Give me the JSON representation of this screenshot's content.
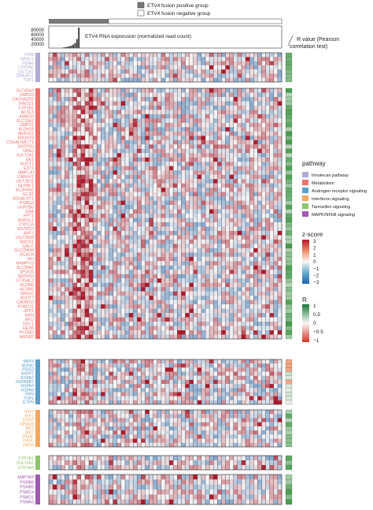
{
  "chart_data": {
    "type": "heatmap",
    "title": "",
    "group_legend": [
      {
        "label": "ETV4 fusion positive group",
        "color": "#777777"
      },
      {
        "label": "ETV4 fusion negative group",
        "color": "#ffffff"
      }
    ],
    "group_split": {
      "positive_samples": 9,
      "total_samples": 58
    },
    "expression_bar": {
      "label": "ETV4 RNA expression (normalized read count)",
      "ticks": [
        "80000",
        "60000",
        "40000",
        "20000"
      ],
      "values": [
        2500,
        4000,
        5500,
        7500,
        10000,
        14000,
        20000,
        36000,
        82000
      ]
    },
    "r_value_title": [
      "R value (Pearson",
      "correlation test)"
    ],
    "pathway_legend": {
      "title": "pathway",
      "items": [
        {
          "label": "Irinotecan pathway",
          "color": "#b1a9d6"
        },
        {
          "label": "Metabolism",
          "color": "#f0706d"
        },
        {
          "label": "Androgen receptor signaling",
          "color": "#5a9ec9"
        },
        {
          "label": "Interferon signaling",
          "color": "#f4a85e"
        },
        {
          "label": "Tamoxifen signaling",
          "color": "#8cc56a"
        },
        {
          "label": "MAPK/NFkB signaling",
          "color": "#a05ab0"
        }
      ]
    },
    "zscore_legend": {
      "title": "z-score",
      "ticks": [
        "3",
        "2",
        "1",
        "0",
        "−1",
        "−2",
        "−3"
      ],
      "range": [
        -3,
        3
      ]
    },
    "r_legend": {
      "title": "R",
      "ticks": [
        "1",
        "0.5",
        "0",
        "−0.5",
        "−1"
      ],
      "range": [
        -1,
        1
      ]
    },
    "gene_groups": [
      {
        "pathway": "Irinotecan pathway",
        "genes": [
          "PPIB",
          "NR3C1",
          "PDIA6",
          "CYP2A6",
          "UGT1A1",
          "DNAJB11",
          "TOP1"
        ]
      },
      {
        "pathway": "Metabolism",
        "genes": [
          "SLC45A3",
          "SMPD3",
          "CACNA2D2",
          "TRESZ1",
          "CYP1B1",
          "ACSL3",
          "AMACR",
          "SLC15A1",
          "SMPD1",
          "ALDH18",
          "AKR1D1",
          "B3GNT9",
          "CSGALNACT1",
          "ENTPD5",
          "GBA2",
          "SULT2A1",
          "GK1",
          "NUDT1",
          "EXT2",
          "MBPL30",
          "CARHV1",
          "UGT2B11",
          "GLDNL1",
          "ALDH3A2",
          "GCAT",
          "B3GALNT1",
          "PSMG3",
          "UGP2B6",
          "GAA",
          "PPT1",
          "ASPGL1",
          "CYP2J4",
          "ENTPD7",
          "ARF1",
          "UGT2B28",
          "SMOS1",
          "GALC",
          "SLC25A44",
          "ACACB",
          "NFI",
          "NAMPOS",
          "SLC39A2",
          "SPOCK",
          "SEPHS2",
          "ST3GAL1",
          "GLDM6",
          "ACSM1",
          "SBH1C",
          "NUDT7",
          "CADM1D",
          "POM121",
          "UPP2",
          "MAN",
          "AP1I",
          "ODC1",
          "HEXB",
          "PYDRD",
          "HMGB2"
        ]
      },
      {
        "pathway": "Androgen receptor signaling",
        "genes": [
          "RBP4",
          "NONO",
          "PSIS3",
          "INSIP1",
          "KSPA2",
          "HSPA8B1",
          "HSPA4",
          "HSPA8",
          "RAN",
          "TOP1",
          "ETPN"
        ]
      },
      {
        "pathway": "Interferon signaling",
        "genes": [
          "IFI27",
          "IRF2",
          "EGR2",
          "PPM1B",
          "MX2",
          "MX1",
          "IFI44L",
          "OASL",
          "OAS2"
        ]
      },
      {
        "pathway": "Tamoxifen signaling",
        "genes": [
          "CYP1B1",
          "SULT2A1",
          "CYP3A4"
        ]
      },
      {
        "pathway": "MAPK/NFkB signaling",
        "genes": [
          "MAP3K8",
          "PSMB8",
          "PSMB9",
          "PSMC4",
          "PSMD1",
          "PSMA3"
        ]
      }
    ]
  }
}
